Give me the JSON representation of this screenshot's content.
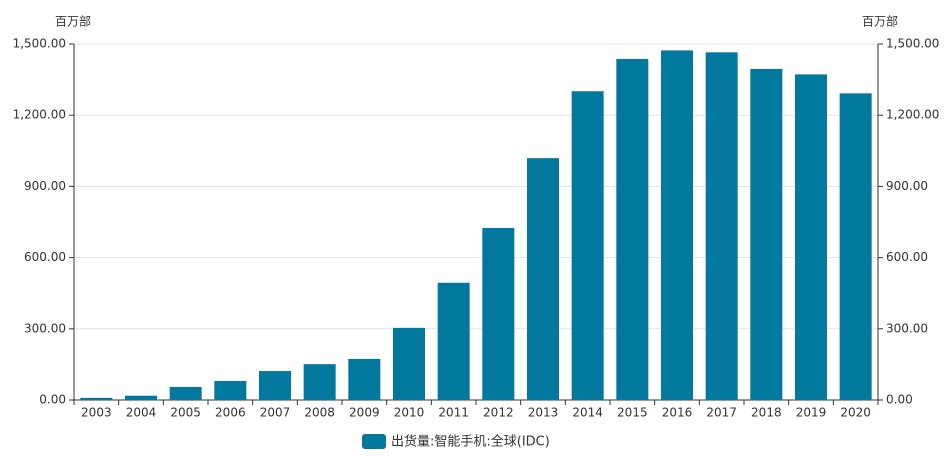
{
  "chart_data": {
    "type": "bar",
    "ylabel": "百万部",
    "y2label": "百万部",
    "categories": [
      "2003",
      "2004",
      "2005",
      "2006",
      "2007",
      "2008",
      "2009",
      "2010",
      "2011",
      "2012",
      "2013",
      "2014",
      "2015",
      "2016",
      "2017",
      "2018",
      "2019",
      "2020"
    ],
    "series": [
      {
        "name": "出货量:智能手机:全球(IDC)",
        "color": "#02789f",
        "values": [
          9,
          18,
          55,
          80,
          122,
          151,
          173,
          304,
          494,
          725,
          1019,
          1301,
          1437,
          1473,
          1465,
          1395,
          1372,
          1292
        ]
      }
    ],
    "ylim": [
      0,
      1500
    ],
    "yticks": [
      {
        "value": 0,
        "label": "0.00"
      },
      {
        "value": 300,
        "label": "300.00"
      },
      {
        "value": 600,
        "label": "600.00"
      },
      {
        "value": 900,
        "label": "900.00"
      },
      {
        "value": 1200,
        "label": "1,200.00"
      },
      {
        "value": 1500,
        "label": "1,500.00"
      }
    ],
    "y2lim": [
      0,
      1500
    ],
    "y2ticks": [
      {
        "value": 0,
        "label": "0.00"
      },
      {
        "value": 300,
        "label": "300.00"
      },
      {
        "value": 600,
        "label": "600.00"
      },
      {
        "value": 900,
        "label": "900.00"
      },
      {
        "value": 1200,
        "label": "1,200.00"
      },
      {
        "value": 1500,
        "label": "1,500.00"
      }
    ],
    "grid": true,
    "legend": "bottom"
  }
}
